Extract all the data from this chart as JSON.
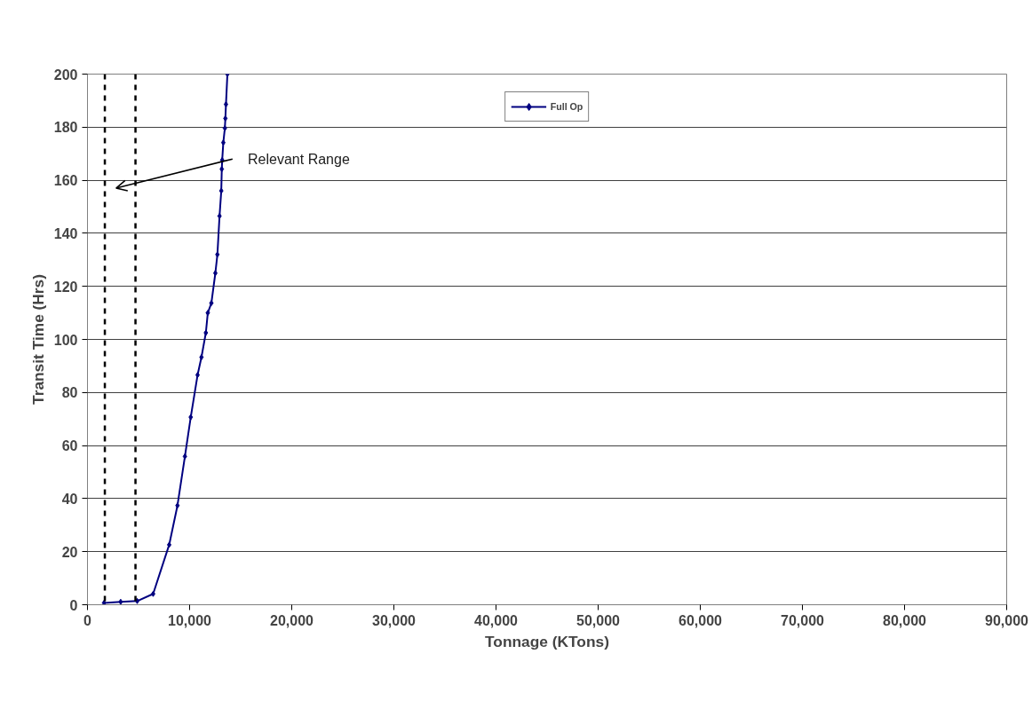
{
  "chart_data": {
    "type": "line",
    "xlabel": "Tonnage (KTons)",
    "ylabel": "Transit Time (Hrs)",
    "x": [
      1620,
      3250,
      4870,
      6430,
      8000,
      8810,
      9540,
      10110,
      10780,
      11160,
      11590,
      11780,
      12130,
      12520,
      12720,
      12930,
      13100,
      13150,
      13190,
      13300,
      13450,
      13500,
      13560,
      13700
    ],
    "series": [
      {
        "name": "Full Op",
        "color": "#000080",
        "values": [
          0.7,
          1.1,
          1.4,
          4.1,
          22.6,
          37.4,
          55.9,
          70.7,
          86.6,
          93.3,
          102.5,
          110,
          113.7,
          125,
          132,
          146.5,
          156,
          164.2,
          167.6,
          174.2,
          179.6,
          183.3,
          188.6,
          200
        ]
      }
    ],
    "xlim": [
      0,
      90000
    ],
    "xticks": [
      {
        "value": 0,
        "label": "0"
      },
      {
        "value": 10000,
        "label": "10,000"
      },
      {
        "value": 20000,
        "label": "20,000"
      },
      {
        "value": 30000,
        "label": "30,000"
      },
      {
        "value": 40000,
        "label": "40,000"
      },
      {
        "value": 50000,
        "label": "50,000"
      },
      {
        "value": 60000,
        "label": "60,000"
      },
      {
        "value": 70000,
        "label": "70,000"
      },
      {
        "value": 80000,
        "label": "80,000"
      },
      {
        "value": 90000,
        "label": "90,000"
      }
    ],
    "ylim": [
      0,
      200
    ],
    "yticks": [
      0,
      20,
      40,
      60,
      80,
      100,
      120,
      140,
      160,
      180,
      200
    ],
    "ref_lines": [
      {
        "axis": "x",
        "value": 1700,
        "color": "#000000",
        "line_style": "dashed"
      },
      {
        "axis": "x",
        "value": 4700,
        "color": "#000000",
        "line_style": "dashed"
      }
    ],
    "annotations": [
      "Relevant Range"
    ],
    "grid": "y",
    "legend": "top",
    "marker": "diamond",
    "line_style": "solid"
  }
}
